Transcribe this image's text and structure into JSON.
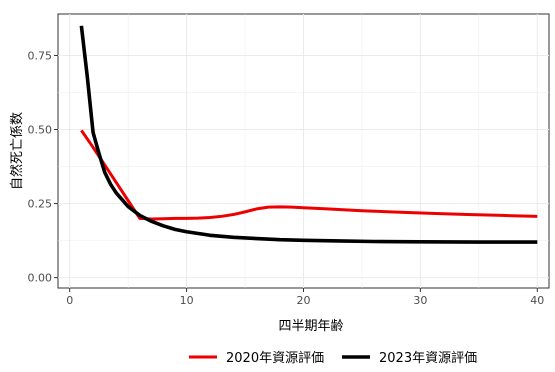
{
  "chart_data": {
    "type": "line",
    "xlabel": "四半期年齢",
    "ylabel": "自然死亡係数",
    "xlim": [
      -1,
      41
    ],
    "ylim": [
      -0.035,
      0.89
    ],
    "xticks": [
      0,
      10,
      20,
      30,
      40
    ],
    "yticks": [
      "0.00",
      "0.25",
      "0.50",
      "0.75"
    ],
    "yticks_values": [
      0.0,
      0.25,
      0.5,
      0.75
    ],
    "legend_position": "bottom",
    "series": [
      {
        "name": "2020年資源評価",
        "color": "#ee0000",
        "x": [
          1,
          2,
          3,
          4,
          5,
          6,
          7,
          8,
          9,
          10,
          11,
          12,
          13,
          14,
          15,
          16,
          17,
          18,
          19,
          20,
          22,
          25,
          28,
          31,
          34,
          37,
          40
        ],
        "y": [
          0.497,
          0.44,
          0.38,
          0.32,
          0.26,
          0.2,
          0.198,
          0.199,
          0.2,
          0.2,
          0.201,
          0.203,
          0.207,
          0.213,
          0.222,
          0.232,
          0.238,
          0.239,
          0.238,
          0.236,
          0.232,
          0.226,
          0.221,
          0.217,
          0.213,
          0.21,
          0.207
        ]
      },
      {
        "name": "2023年資源評価",
        "color": "#000000",
        "x": [
          1,
          1.5,
          2,
          2.5,
          3,
          3.5,
          4,
          5,
          6,
          7,
          8,
          9,
          10,
          12,
          14,
          16,
          18,
          20,
          23,
          26,
          30,
          35,
          40
        ],
        "y": [
          0.85,
          0.68,
          0.49,
          0.42,
          0.355,
          0.315,
          0.285,
          0.24,
          0.21,
          0.19,
          0.175,
          0.163,
          0.155,
          0.143,
          0.136,
          0.132,
          0.128,
          0.126,
          0.124,
          0.122,
          0.121,
          0.12,
          0.12
        ]
      }
    ]
  }
}
